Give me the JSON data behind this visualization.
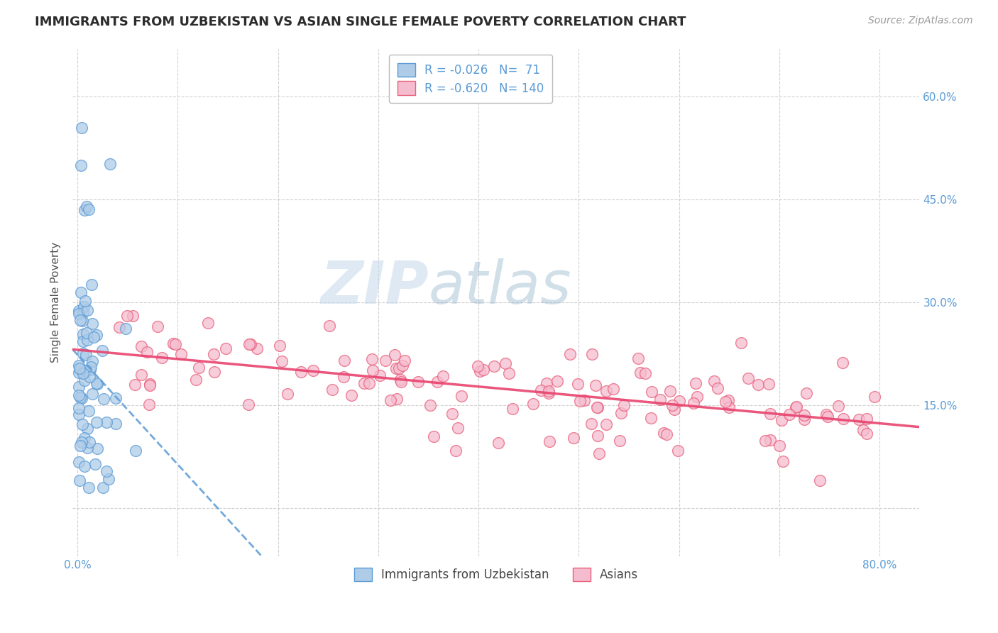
{
  "title": "IMMIGRANTS FROM UZBEKISTAN VS ASIAN SINGLE FEMALE POVERTY CORRELATION CHART",
  "source": "Source: ZipAtlas.com",
  "ylabel": "Single Female Poverty",
  "x_ticks": [
    0.0,
    0.1,
    0.2,
    0.3,
    0.4,
    0.5,
    0.6,
    0.7,
    0.8
  ],
  "y_ticks": [
    0.0,
    0.15,
    0.3,
    0.45,
    0.6
  ],
  "xlim": [
    -0.005,
    0.84
  ],
  "ylim": [
    -0.07,
    0.67
  ],
  "background_color": "#ffffff",
  "grid_color": "#cccccc",
  "series1_label": "Immigrants from Uzbekistan",
  "series1_color": "#aecce8",
  "series1_edge_color": "#5b9bd5",
  "series2_label": "Asians",
  "series2_color": "#f5bcd0",
  "series2_edge_color": "#e8607a",
  "line1_color": "#5b9bd5",
  "line2_color": "#e8436e",
  "title_color": "#2c2c2c",
  "axis_label_color": "#555555",
  "tick_label_color": "#5b9bd5",
  "legend_label_color": "#5b9bd5"
}
